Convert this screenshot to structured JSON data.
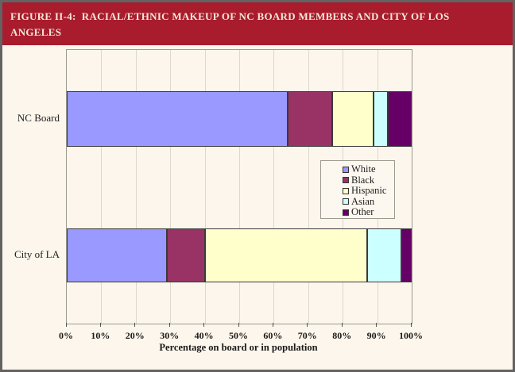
{
  "header": {
    "title": "FIGURE II-4:  RACIAL/ETHNIC MAKEUP OF NC BOARD MEMBERS AND CITY OF LOS ANGELES"
  },
  "chart_data": {
    "type": "bar",
    "orientation": "horizontal",
    "stacked": true,
    "title": "",
    "categories": [
      "NC Board",
      "City of LA"
    ],
    "series": [
      {
        "name": "White",
        "color": "#9999FF",
        "values": [
          64,
          29
        ]
      },
      {
        "name": "Black",
        "color": "#993366",
        "values": [
          13,
          11
        ]
      },
      {
        "name": "Hispanic",
        "color": "#FFFFCC",
        "values": [
          12,
          47
        ]
      },
      {
        "name": "Asian",
        "color": "#CCFFFF",
        "values": [
          4,
          10
        ]
      },
      {
        "name": "Other",
        "color": "#660066",
        "values": [
          7,
          3
        ]
      }
    ],
    "xlabel": "Percentage on board or in population",
    "x_ticks": [
      "0%",
      "10%",
      "20%",
      "30%",
      "40%",
      "50%",
      "60%",
      "70%",
      "80%",
      "90%",
      "100%"
    ],
    "xlim": [
      0,
      100
    ],
    "grid": true,
    "legend_position": "center-right",
    "units": "percent"
  },
  "colors": {
    "banner_background": "#A81C2E",
    "banner_text": "#F2E8D5",
    "figure_background": "#FCF6EC",
    "gridline": "#DBD8CC",
    "axis": "#9A9A90",
    "bar_border": "#3A3A3A"
  }
}
